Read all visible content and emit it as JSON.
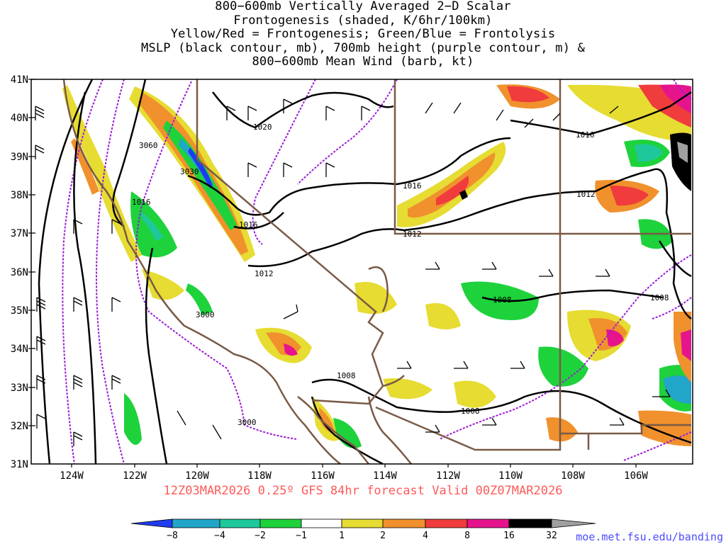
{
  "title_lines": [
    "800−600mb Vertically Averaged 2−D Scalar",
    "Frontogenesis (shaded, K/6hr/100km)",
    "Yellow/Red = Frontogenesis;  Green/Blue = Frontolysis",
    "MSLP (black contour, mb), 700mb height (purple contour, m) &",
    "800−600mb Mean Wind (barb, kt)"
  ],
  "lat_labels": [
    "41N",
    "40N",
    "39N",
    "38N",
    "37N",
    "36N",
    "35N",
    "34N",
    "33N",
    "32N",
    "31N"
  ],
  "lon_labels": [
    "124W",
    "122W",
    "120W",
    "118W",
    "116W",
    "114W",
    "112W",
    "110W",
    "108W",
    "106W"
  ],
  "isobar_labels": [
    "1020",
    "1016",
    "1016",
    "1016",
    "1016",
    "1012",
    "1012",
    "1012",
    "1008",
    "1008",
    "1008",
    "1008"
  ],
  "height_labels": [
    "3060",
    "3030",
    "3000",
    "3000"
  ],
  "footer": "12Z03MAR2026 0.25º GFS 84hr forecast Valid 00Z07MAR2026",
  "credit": "moe.met.fsu.edu/banding",
  "colorbar": {
    "labels": [
      "−8",
      "−4",
      "−2",
      "−1",
      "1",
      "2",
      "4",
      "8",
      "16",
      "32"
    ],
    "colors": [
      "#1f3cf0",
      "#21a5c8",
      "#1fc89b",
      "#1ed23c",
      "#ffffff",
      "#e6dc32",
      "#f0912d",
      "#f03c3c",
      "#e6148c",
      "#000000",
      "#a0a0a0"
    ]
  },
  "colors": {
    "state_border": "#7a5a46",
    "isobar": "#000000",
    "height": "#9b1bd6",
    "footer": "#ff5a5a",
    "credit": "#4b4bff"
  }
}
